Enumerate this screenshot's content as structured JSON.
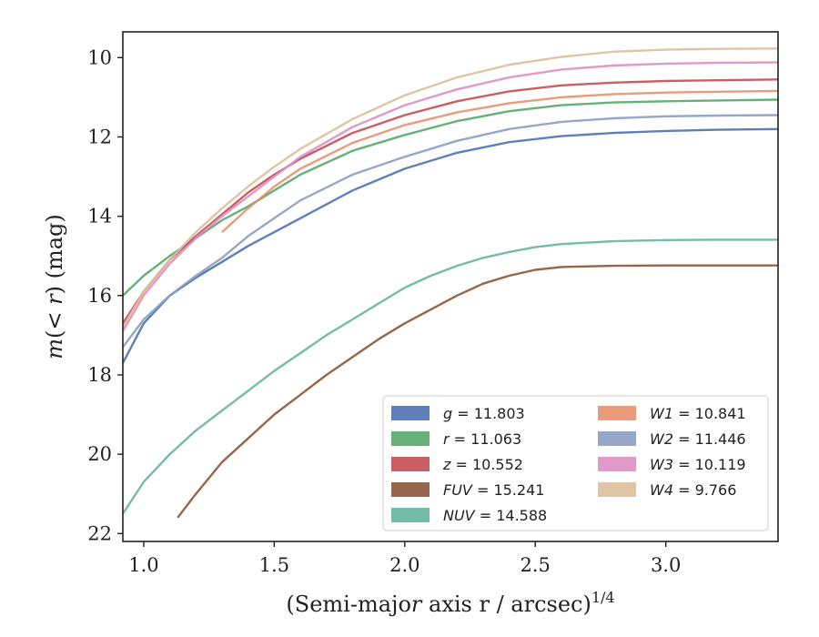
{
  "chart_data": {
    "type": "line",
    "xlabel": "(Semi-major axis r / arcsec)",
    "xlabel_var": "r",
    "xlabel_sup": "1/4",
    "ylabel": "m(< r) (mag)",
    "xlim": [
      0.92,
      3.43
    ],
    "ylim": [
      22.2,
      9.35
    ],
    "y_inverted": true,
    "xticks": [
      1.0,
      1.5,
      2.0,
      2.5,
      3.0
    ],
    "xtick_labels": [
      "1.0",
      "1.5",
      "2.0",
      "2.5",
      "3.0"
    ],
    "yticks": [
      10,
      12,
      14,
      16,
      18,
      20,
      22
    ],
    "ytick_labels": [
      "10",
      "12",
      "14",
      "16",
      "18",
      "20",
      "22"
    ],
    "grid": false,
    "legend_position": "lower-right",
    "series": [
      {
        "band": "g",
        "value": "11.803",
        "color": "#4c72b0",
        "x": [
          0.92,
          1.0,
          1.1,
          1.2,
          1.3,
          1.4,
          1.5,
          1.6,
          1.8,
          2.0,
          2.2,
          2.4,
          2.6,
          2.8,
          3.0,
          3.2,
          3.43
        ],
        "y": [
          17.7,
          16.7,
          16.0,
          15.55,
          15.15,
          14.75,
          14.4,
          14.05,
          13.35,
          12.8,
          12.4,
          12.13,
          11.98,
          11.9,
          11.85,
          11.82,
          11.8
        ]
      },
      {
        "band": "r",
        "value": "11.063",
        "color": "#55a868",
        "x": [
          0.92,
          1.0,
          1.1,
          1.2,
          1.3,
          1.4,
          1.5,
          1.6,
          1.8,
          2.0,
          2.2,
          2.4,
          2.6,
          2.8,
          3.0,
          3.2,
          3.43
        ],
        "y": [
          16.0,
          15.5,
          15.0,
          14.55,
          14.1,
          13.75,
          13.35,
          12.95,
          12.35,
          11.95,
          11.6,
          11.35,
          11.2,
          11.13,
          11.1,
          11.08,
          11.06
        ]
      },
      {
        "band": "z",
        "value": "10.552",
        "color": "#c44e52",
        "x": [
          0.92,
          1.0,
          1.1,
          1.2,
          1.3,
          1.4,
          1.5,
          1.6,
          1.8,
          2.0,
          2.2,
          2.4,
          2.6,
          2.8,
          3.0,
          3.2,
          3.43
        ],
        "y": [
          16.7,
          15.9,
          15.1,
          14.5,
          13.95,
          13.4,
          12.95,
          12.55,
          11.9,
          11.45,
          11.1,
          10.85,
          10.7,
          10.63,
          10.59,
          10.57,
          10.55
        ]
      },
      {
        "band": "FUV",
        "value": "15.241",
        "color": "#8c5536",
        "x": [
          1.13,
          1.2,
          1.3,
          1.4,
          1.5,
          1.6,
          1.7,
          1.8,
          1.9,
          2.0,
          2.1,
          2.2,
          2.3,
          2.4,
          2.5,
          2.6,
          2.8,
          3.0,
          3.2,
          3.43
        ],
        "y": [
          21.6,
          21.0,
          20.2,
          19.6,
          19.0,
          18.5,
          18.0,
          17.55,
          17.1,
          16.7,
          16.35,
          16.0,
          15.7,
          15.5,
          15.35,
          15.28,
          15.25,
          15.24,
          15.24,
          15.24
        ]
      },
      {
        "band": "NUV",
        "value": "14.588",
        "color": "#64b5a0",
        "x": [
          0.92,
          1.0,
          1.1,
          1.2,
          1.3,
          1.4,
          1.5,
          1.6,
          1.7,
          1.8,
          1.9,
          2.0,
          2.1,
          2.2,
          2.3,
          2.4,
          2.5,
          2.6,
          2.8,
          3.0,
          3.2,
          3.43
        ],
        "y": [
          21.5,
          20.7,
          20.0,
          19.4,
          18.9,
          18.4,
          17.9,
          17.45,
          17.0,
          16.6,
          16.2,
          15.8,
          15.5,
          15.25,
          15.05,
          14.9,
          14.78,
          14.7,
          14.63,
          14.6,
          14.59,
          14.59
        ]
      },
      {
        "band": "W1",
        "value": "10.841",
        "color": "#e8906c",
        "x": [
          1.3,
          1.4,
          1.5,
          1.6,
          1.8,
          2.0,
          2.2,
          2.4,
          2.6,
          2.8,
          3.0,
          3.2,
          3.43
        ],
        "y": [
          14.4,
          13.8,
          13.25,
          12.8,
          12.15,
          11.7,
          11.38,
          11.15,
          11.0,
          10.92,
          10.88,
          10.86,
          10.84
        ]
      },
      {
        "band": "W2",
        "value": "11.446",
        "color": "#8b9dc3",
        "x": [
          0.92,
          1.0,
          1.1,
          1.2,
          1.3,
          1.4,
          1.5,
          1.6,
          1.8,
          2.0,
          2.2,
          2.4,
          2.6,
          2.8,
          3.0,
          3.2,
          3.43
        ],
        "y": [
          17.3,
          16.6,
          16.0,
          15.5,
          15.05,
          14.5,
          14.05,
          13.6,
          12.95,
          12.5,
          12.1,
          11.8,
          11.62,
          11.53,
          11.48,
          11.46,
          11.45
        ]
      },
      {
        "band": "W3",
        "value": "10.119",
        "color": "#dd8fc3",
        "x": [
          0.92,
          1.0,
          1.1,
          1.2,
          1.3,
          1.4,
          1.5,
          1.6,
          1.8,
          2.0,
          2.2,
          2.4,
          2.6,
          2.8,
          3.0,
          3.2,
          3.43
        ],
        "y": [
          16.9,
          16.0,
          15.2,
          14.55,
          14.0,
          13.5,
          13.0,
          12.5,
          11.75,
          11.2,
          10.8,
          10.5,
          10.3,
          10.2,
          10.15,
          10.13,
          10.12
        ]
      },
      {
        "band": "W4",
        "value": "9.766",
        "color": "#dbbf9a",
        "x": [
          0.92,
          1.0,
          1.1,
          1.2,
          1.3,
          1.4,
          1.5,
          1.6,
          1.8,
          2.0,
          2.2,
          2.4,
          2.6,
          2.8,
          3.0,
          3.2,
          3.43
        ],
        "y": [
          16.8,
          15.9,
          15.1,
          14.4,
          13.8,
          13.25,
          12.75,
          12.3,
          11.55,
          10.95,
          10.5,
          10.18,
          9.98,
          9.85,
          9.8,
          9.78,
          9.77
        ]
      }
    ]
  }
}
